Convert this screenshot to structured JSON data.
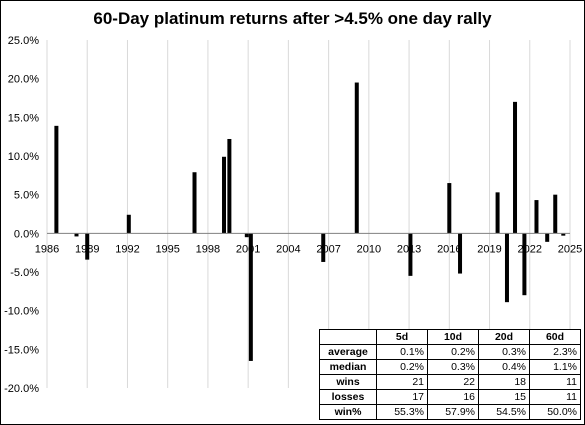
{
  "chart_data": {
    "type": "bar",
    "title": "60-Day platinum returns after >4.5% one day rally",
    "xlabel": "",
    "ylabel": "",
    "xlim": [
      1986,
      2025
    ],
    "ylim": [
      -0.2,
      0.25
    ],
    "x_ticks": [
      "1986",
      "1989",
      "1992",
      "1995",
      "1998",
      "2001",
      "2004",
      "2007",
      "2010",
      "2013",
      "2016",
      "2019",
      "2022",
      "2025"
    ],
    "x_tick_values": [
      1986,
      1989,
      1992,
      1995,
      1998,
      2001,
      2004,
      2007,
      2010,
      2013,
      2016,
      2019,
      2022,
      2025
    ],
    "y_ticks": [
      "25.0%",
      "20.0%",
      "15.0%",
      "10.0%",
      "5.0%",
      "0.0%",
      "-5.0%",
      "-10.0%",
      "-15.0%",
      "-20.0%"
    ],
    "y_tick_values": [
      0.25,
      0.2,
      0.15,
      0.1,
      0.05,
      0.0,
      -0.05,
      -0.1,
      -0.15,
      -0.2
    ],
    "grid": "vertical",
    "series": [
      {
        "color": "#000000",
        "points": [
          {
            "x": 1986.7,
            "y": 0.139
          },
          {
            "x": 1988.2,
            "y": -0.004
          },
          {
            "x": 1989.0,
            "y": -0.034
          },
          {
            "x": 1992.1,
            "y": 0.024
          },
          {
            "x": 1997.0,
            "y": 0.079
          },
          {
            "x": 1999.2,
            "y": 0.099
          },
          {
            "x": 1999.6,
            "y": 0.122
          },
          {
            "x": 2000.9,
            "y": -0.005
          },
          {
            "x": 2001.2,
            "y": -0.165
          },
          {
            "x": 2006.6,
            "y": -0.037
          },
          {
            "x": 2009.1,
            "y": 0.195
          },
          {
            "x": 2013.1,
            "y": -0.055
          },
          {
            "x": 2016.0,
            "y": 0.065
          },
          {
            "x": 2016.8,
            "y": -0.052
          },
          {
            "x": 2019.6,
            "y": 0.053
          },
          {
            "x": 2020.3,
            "y": -0.089
          },
          {
            "x": 2020.9,
            "y": 0.17
          },
          {
            "x": 2021.6,
            "y": -0.08
          },
          {
            "x": 2022.5,
            "y": 0.043
          },
          {
            "x": 2023.3,
            "y": -0.011
          },
          {
            "x": 2023.9,
            "y": 0.05
          },
          {
            "x": 2024.5,
            "y": -0.003
          }
        ]
      }
    ]
  },
  "stats_table": {
    "columns": [
      "5d",
      "10d",
      "20d",
      "60d"
    ],
    "rows": [
      {
        "label": "average",
        "values": [
          "0.1%",
          "0.2%",
          "0.3%",
          "2.3%"
        ]
      },
      {
        "label": "median",
        "values": [
          "0.2%",
          "0.3%",
          "0.4%",
          "1.1%"
        ]
      },
      {
        "label": "wins",
        "values": [
          "21",
          "22",
          "18",
          "11"
        ]
      },
      {
        "label": "losses",
        "values": [
          "17",
          "16",
          "15",
          "11"
        ]
      },
      {
        "label": "win%",
        "values": [
          "55.3%",
          "57.9%",
          "54.5%",
          "50.0%"
        ]
      }
    ]
  }
}
